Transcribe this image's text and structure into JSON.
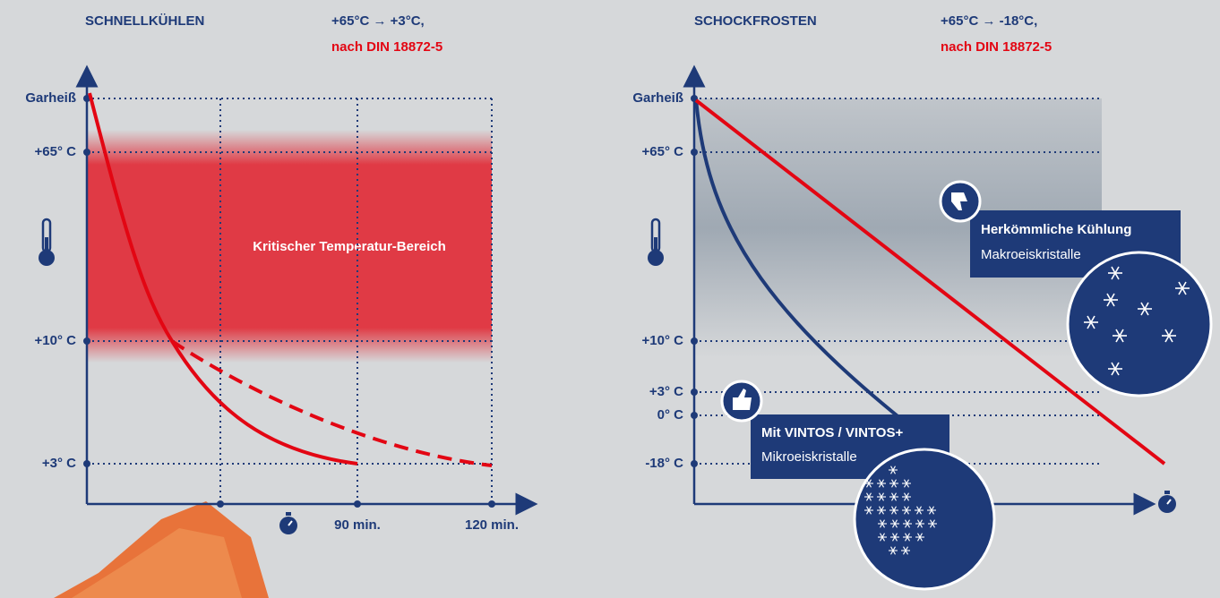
{
  "left": {
    "title": "SCHNELLKÜHLEN",
    "subtitle": "+65°C → +3°C,",
    "norm": "nach DIN 18872-5",
    "y_labels": [
      "Garheiß",
      "+65° C",
      "+10° C",
      "+3° C"
    ],
    "x_labels": [
      "90 min.",
      "120 min."
    ],
    "zone_label": "Kritischer Temperatur-Bereich"
  },
  "right": {
    "title": "SCHOCKFROSTEN",
    "subtitle": "+65°C → -18°C,",
    "norm": "nach DIN 18872-5",
    "y_labels": [
      "Garheiß",
      "+65° C",
      "+10° C",
      "+3° C",
      "0° C",
      "-18° C"
    ],
    "callouts": [
      {
        "title": "Herkömmliche Kühlung",
        "text": "Makroeiskristalle"
      },
      {
        "title": "Mit VINTOS / VINTOS+",
        "text": "Mikroeiskristalle"
      }
    ]
  }
}
